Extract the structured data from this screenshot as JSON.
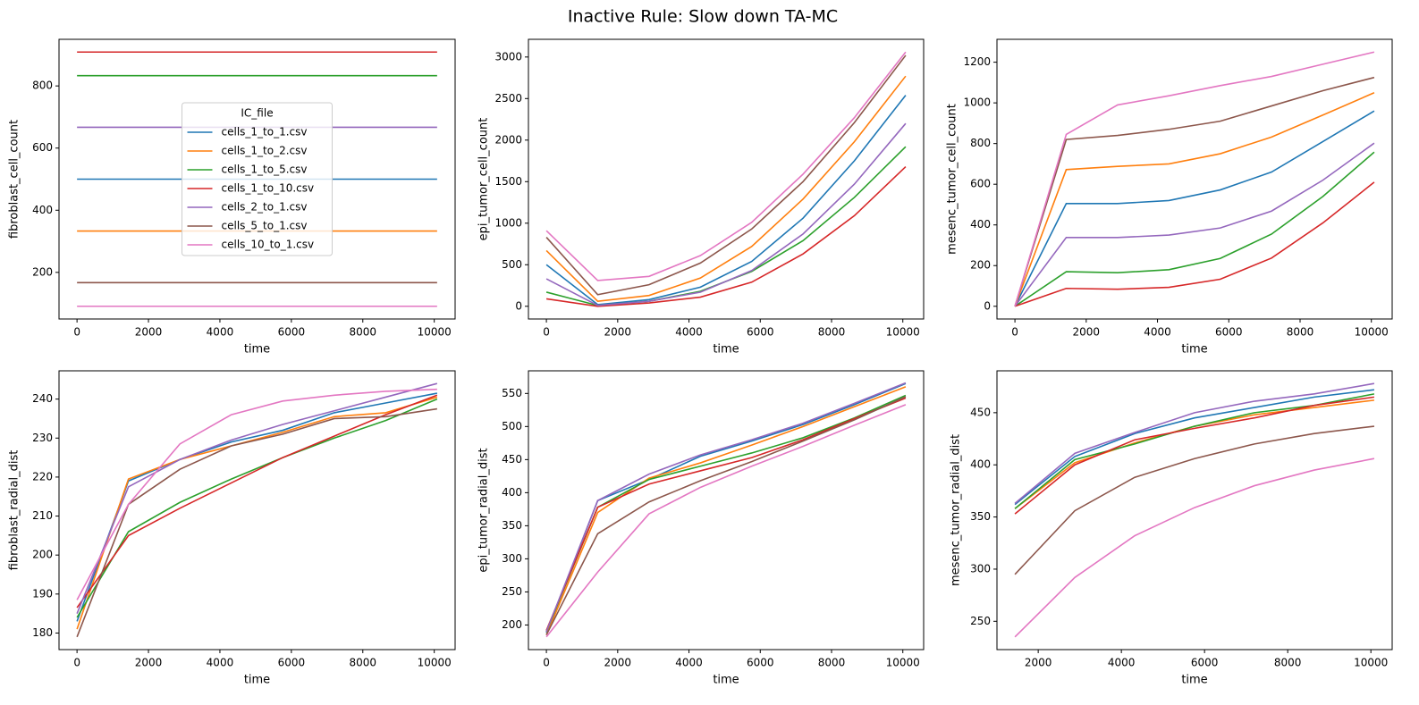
{
  "title": "Inactive Rule: Slow down TA-MC",
  "chart_data": [
    {
      "type": "line",
      "xlabel": "time",
      "ylabel": "fibroblast_cell_count",
      "x": [
        0,
        1440,
        2880,
        4320,
        5760,
        7200,
        8640,
        10080
      ],
      "xlim": [
        -504,
        10584
      ],
      "ylim": [
        50,
        950
      ],
      "xticks": [
        0,
        2000,
        4000,
        6000,
        8000,
        10000
      ],
      "yticks": [
        200,
        400,
        600,
        800
      ],
      "legend": "center",
      "legend_title": "IC_file",
      "series": [
        {
          "name": "cells_1_to_1.csv",
          "color": "#1f77b4",
          "values": [
            500,
            500,
            500,
            500,
            500,
            500,
            500,
            500
          ]
        },
        {
          "name": "cells_1_to_2.csv",
          "color": "#ff7f0e",
          "values": [
            333,
            333,
            333,
            333,
            333,
            333,
            333,
            333
          ]
        },
        {
          "name": "cells_1_to_5.csv",
          "color": "#2ca02c",
          "values": [
            833,
            833,
            833,
            833,
            833,
            833,
            833,
            833
          ]
        },
        {
          "name": "cells_1_to_10.csv",
          "color": "#d62728",
          "values": [
            909,
            909,
            909,
            909,
            909,
            909,
            909,
            909
          ]
        },
        {
          "name": "cells_2_to_1.csv",
          "color": "#9467bd",
          "values": [
            667,
            667,
            667,
            667,
            667,
            667,
            667,
            667
          ]
        },
        {
          "name": "cells_5_to_1.csv",
          "color": "#8c564b",
          "values": [
            167,
            167,
            167,
            167,
            167,
            167,
            167,
            167
          ]
        },
        {
          "name": "cells_10_to_1.csv",
          "color": "#e377c2",
          "values": [
            91,
            91,
            91,
            91,
            91,
            91,
            91,
            91
          ]
        }
      ]
    },
    {
      "type": "line",
      "xlabel": "time",
      "ylabel": "epi_tumor_cell_count",
      "x": [
        0,
        1440,
        2880,
        4320,
        5760,
        7200,
        8640,
        10080
      ],
      "xlim": [
        -504,
        10584
      ],
      "ylim": [
        -153,
        3213
      ],
      "xticks": [
        0,
        2000,
        4000,
        6000,
        8000,
        10000
      ],
      "yticks": [
        0,
        500,
        1000,
        1500,
        2000,
        2500,
        3000
      ],
      "series": [
        {
          "color": "#1f77b4",
          "values": [
            500,
            20,
            80,
            230,
            540,
            1060,
            1750,
            2540
          ]
        },
        {
          "color": "#ff7f0e",
          "values": [
            670,
            60,
            130,
            340,
            720,
            1290,
            1980,
            2770
          ]
        },
        {
          "color": "#2ca02c",
          "values": [
            170,
            10,
            60,
            180,
            420,
            790,
            1310,
            1920
          ]
        },
        {
          "color": "#d62728",
          "values": [
            90,
            0,
            40,
            110,
            290,
            630,
            1090,
            1680
          ]
        },
        {
          "color": "#9467bd",
          "values": [
            330,
            10,
            60,
            170,
            430,
            870,
            1470,
            2200
          ]
        },
        {
          "color": "#8c564b",
          "values": [
            830,
            140,
            260,
            520,
            930,
            1500,
            2210,
            3020
          ]
        },
        {
          "color": "#e377c2",
          "values": [
            910,
            310,
            360,
            610,
            1010,
            1590,
            2270,
            3060
          ]
        }
      ]
    },
    {
      "type": "line",
      "xlabel": "time",
      "ylabel": "mesenc_tumor_cell_count",
      "x": [
        0,
        1440,
        2880,
        4320,
        5760,
        7200,
        8640,
        10080
      ],
      "xlim": [
        -504,
        10584
      ],
      "ylim": [
        -62.5,
        1312.5
      ],
      "xticks": [
        0,
        2000,
        4000,
        6000,
        8000,
        10000
      ],
      "yticks": [
        0,
        200,
        400,
        600,
        800,
        1000,
        1200
      ],
      "series": [
        {
          "color": "#1f77b4",
          "values": [
            0,
            505,
            505,
            520,
            572,
            660,
            810,
            960
          ]
        },
        {
          "color": "#ff7f0e",
          "values": [
            0,
            672,
            688,
            700,
            750,
            832,
            940,
            1050
          ]
        },
        {
          "color": "#2ca02c",
          "values": [
            0,
            170,
            165,
            180,
            235,
            355,
            540,
            758
          ]
        },
        {
          "color": "#d62728",
          "values": [
            0,
            88,
            84,
            93,
            133,
            237,
            410,
            610
          ]
        },
        {
          "color": "#9467bd",
          "values": [
            0,
            338,
            338,
            350,
            385,
            468,
            620,
            802
          ]
        },
        {
          "color": "#8c564b",
          "values": [
            0,
            820,
            840,
            870,
            910,
            985,
            1060,
            1125
          ]
        },
        {
          "color": "#e377c2",
          "values": [
            0,
            845,
            990,
            1035,
            1085,
            1130,
            1190,
            1250
          ]
        }
      ]
    },
    {
      "type": "line",
      "xlabel": "time",
      "ylabel": "fibroblast_radial_dist",
      "x": [
        0,
        1440,
        2880,
        4320,
        5760,
        7200,
        8640,
        10080
      ],
      "xlim": [
        -504,
        10584
      ],
      "ylim": [
        175.75,
        247.25
      ],
      "xticks": [
        0,
        2000,
        4000,
        6000,
        8000,
        10000
      ],
      "yticks": [
        180,
        190,
        200,
        210,
        220,
        230,
        240
      ],
      "series": [
        {
          "color": "#1f77b4",
          "values": [
            183,
            219,
            224.5,
            229,
            232,
            236.5,
            239,
            241.5
          ]
        },
        {
          "color": "#ff7f0e",
          "values": [
            181,
            219.5,
            224.5,
            228,
            231.5,
            235.5,
            236.5,
            240.5
          ]
        },
        {
          "color": "#2ca02c",
          "values": [
            184,
            206,
            213.5,
            219.5,
            225,
            230,
            234.5,
            240
          ]
        },
        {
          "color": "#d62728",
          "values": [
            186.5,
            205,
            212,
            218.5,
            225,
            230.5,
            236,
            241
          ]
        },
        {
          "color": "#9467bd",
          "values": [
            185,
            217.5,
            224.5,
            229.5,
            233.5,
            237,
            240.5,
            244
          ]
        },
        {
          "color": "#8c564b",
          "values": [
            179,
            213,
            222,
            228,
            231,
            235,
            235.5,
            237.5
          ]
        },
        {
          "color": "#e377c2",
          "values": [
            188.5,
            213,
            228.5,
            236,
            239.5,
            241,
            242,
            242.5
          ]
        }
      ]
    },
    {
      "type": "line",
      "xlabel": "time",
      "ylabel": "epi_tumor_radial_dist",
      "x": [
        0,
        1440,
        2880,
        4320,
        5760,
        7200,
        8640,
        10080
      ],
      "xlim": [
        -504,
        10584
      ],
      "ylim": [
        162.8,
        584.2
      ],
      "xticks": [
        0,
        2000,
        4000,
        6000,
        8000,
        10000
      ],
      "yticks": [
        200,
        250,
        300,
        350,
        400,
        450,
        500,
        550
      ],
      "series": [
        {
          "color": "#1f77b4",
          "values": [
            188,
            388,
            420,
            455,
            478,
            503,
            533,
            565
          ]
        },
        {
          "color": "#ff7f0e",
          "values": [
            185,
            370,
            422,
            445,
            472,
            500,
            530,
            560
          ]
        },
        {
          "color": "#2ca02c",
          "values": [
            190,
            378,
            420,
            440,
            460,
            483,
            513,
            547
          ]
        },
        {
          "color": "#d62728",
          "values": [
            192,
            378,
            413,
            433,
            453,
            480,
            512,
            543
          ]
        },
        {
          "color": "#9467bd",
          "values": [
            190,
            388,
            428,
            457,
            480,
            505,
            535,
            566
          ]
        },
        {
          "color": "#8c564b",
          "values": [
            185,
            338,
            386,
            418,
            447,
            478,
            510,
            545
          ]
        },
        {
          "color": "#e377c2",
          "values": [
            182,
            280,
            368,
            408,
            440,
            470,
            502,
            533
          ]
        }
      ]
    },
    {
      "type": "line",
      "xlabel": "time",
      "ylabel": "mesenc_tumor_radial_dist",
      "x": [
        1440,
        2880,
        4320,
        5760,
        7200,
        8640,
        10080
      ],
      "xlim": [
        1008,
        10512
      ],
      "ylim": [
        222.85,
        490.15
      ],
      "xticks": [
        2000,
        4000,
        6000,
        8000,
        10000
      ],
      "yticks": [
        250,
        300,
        350,
        400,
        450
      ],
      "series": [
        {
          "color": "#1f77b4",
          "values": [
            362,
            408,
            430,
            445,
            455,
            465,
            472
          ]
        },
        {
          "color": "#ff7f0e",
          "values": [
            358,
            402,
            421,
            437,
            448,
            455,
            462
          ]
        },
        {
          "color": "#2ca02c",
          "values": [
            358,
            405,
            420,
            437,
            450,
            457,
            468
          ]
        },
        {
          "color": "#d62728",
          "values": [
            353,
            400,
            424,
            435,
            445,
            457,
            465
          ]
        },
        {
          "color": "#9467bd",
          "values": [
            363,
            411,
            431,
            450,
            461,
            468,
            478
          ]
        },
        {
          "color": "#8c564b",
          "values": [
            295,
            356,
            388,
            406,
            420,
            430,
            437
          ]
        },
        {
          "color": "#e377c2",
          "values": [
            235,
            292,
            332,
            359,
            380,
            395,
            406
          ]
        }
      ]
    }
  ]
}
